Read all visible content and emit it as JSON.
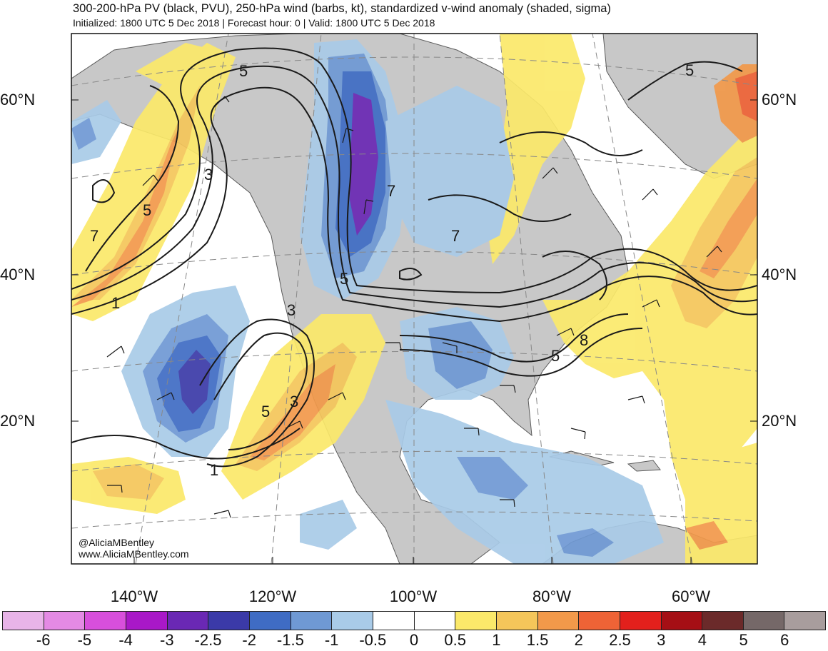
{
  "header": {
    "title": "300-200-hPa PV (black, PVU), 250-hPa wind (barbs, kt), standardized v-wind anomaly (shaded, sigma)",
    "subtitle": "Initialized: 1800 UTC 5 Dec 2018 | Forecast hour: 0 | Valid: 1800 UTC 5 Dec 2018"
  },
  "map": {
    "lat_labels": [
      "60°N",
      "40°N",
      "20°N"
    ],
    "lon_labels": [
      "140°W",
      "120°W",
      "100°W",
      "80°W",
      "60°W"
    ],
    "pv_contour_labels": [
      "5",
      "3",
      "5",
      "7",
      "1",
      "7",
      "5",
      "3",
      "3",
      "5",
      "1",
      "7",
      "5",
      "8",
      "5"
    ],
    "credit_handle": "@AliciaMBentley",
    "credit_url": "www.AliciaMBentley.com"
  },
  "colorbar": {
    "labels": [
      "-6",
      "-5",
      "-4",
      "-3",
      "-2.5",
      "-2",
      "-1.5",
      "-1",
      "-0.5",
      "0",
      "0.5",
      "1",
      "1.5",
      "2",
      "2.5",
      "3",
      "4",
      "5",
      "6"
    ],
    "colors": [
      "#e8b4e8",
      "#e48ae4",
      "#d84fdc",
      "#a918c8",
      "#6a28b4",
      "#3b3aa8",
      "#3f6cc4",
      "#6f99d4",
      "#a9cbe8",
      "#ffffff",
      "#ffffff",
      "#fbe96a",
      "#f5c65a",
      "#f2994a",
      "#ee6336",
      "#e3201c",
      "#a50f15",
      "#6b2a2a",
      "#756868",
      "#a89d9d"
    ]
  },
  "colors": {
    "land": "#c8c8c8",
    "ocean": "#ffffff",
    "pv_contour": "#1a1a1a",
    "coastline": "#5a5a5a"
  }
}
